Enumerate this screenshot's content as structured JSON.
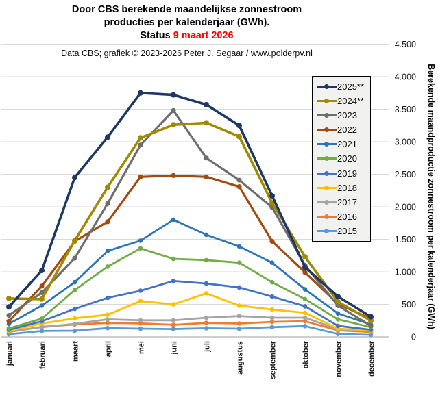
{
  "title": {
    "line1": "Door CBS berekende maandelijkse  zonnestroom",
    "line2": "producties per kalenderjaar (GWh).",
    "status_prefix": "Status ",
    "status_date": "9 maart 2026"
  },
  "subtitle": "Data CBS;  grafiek © 2023-2026  Peter J. Segaar / www.polderpv.nl",
  "axis": {
    "y_title": "Berekende  maandproductie  zonnestroom  per  kalenderjaar  (GWh)",
    "y_ticks": [
      "0",
      "500",
      "1.000",
      "1.500",
      "2.000",
      "2.500",
      "3.000",
      "3.500",
      "4.000",
      "4.500"
    ]
  },
  "chart_data": {
    "type": "line",
    "title": "Door CBS berekende maandelijkse zonnestroom producties per kalenderjaar (GWh). Status 9 maart 2026",
    "xlabel": "",
    "ylabel": "Berekende maandproductie zonnestroom per kalenderjaar (GWh)",
    "ylim": [
      0,
      4500
    ],
    "y_step": 500,
    "grid": true,
    "legend_position": "top-right",
    "x_categories": [
      "januari",
      "februari",
      "maart",
      "april",
      "mei",
      "juni",
      "juli",
      "augustus",
      "september",
      "oktober",
      "november",
      "december"
    ],
    "series": [
      {
        "label": "2025**",
        "color": "#1f3864",
        "line_width": 3.6,
        "marker_r": 4.0,
        "values": [
          460,
          1020,
          2450,
          3070,
          3750,
          3720,
          3570,
          3250,
          2170,
          1070,
          620,
          310
        ]
      },
      {
        "label": "2024**",
        "color": "#a08a00",
        "line_width": 3.6,
        "marker_r": 4.0,
        "values": [
          590,
          580,
          1480,
          2300,
          3060,
          3260,
          3290,
          3080,
          2060,
          1230,
          540,
          250
        ]
      },
      {
        "label": "2023",
        "color": "#6e6e6e",
        "line_width": 3.2,
        "marker_r": 3.6,
        "values": [
          330,
          680,
          1210,
          2050,
          2950,
          3480,
          2750,
          2410,
          1990,
          1100,
          480,
          170
        ]
      },
      {
        "label": "2022",
        "color": "#a24b0e",
        "line_width": 3.2,
        "marker_r": 3.6,
        "values": [
          240,
          780,
          1470,
          1770,
          2460,
          2480,
          2460,
          2310,
          1470,
          990,
          505,
          280
        ]
      },
      {
        "label": "2021",
        "color": "#2e75b6",
        "line_width": 2.8,
        "marker_r": 3.3,
        "values": [
          200,
          480,
          840,
          1320,
          1480,
          1800,
          1570,
          1390,
          1140,
          730,
          360,
          190
        ]
      },
      {
        "label": "2020",
        "color": "#70ad47",
        "line_width": 2.8,
        "marker_r": 3.3,
        "values": [
          130,
          280,
          720,
          1080,
          1360,
          1200,
          1180,
          1140,
          840,
          580,
          270,
          150
        ]
      },
      {
        "label": "2019",
        "color": "#4472c4",
        "line_width": 2.8,
        "marker_r": 3.3,
        "values": [
          110,
          240,
          430,
          600,
          710,
          860,
          820,
          760,
          620,
          470,
          170,
          110
        ]
      },
      {
        "label": "2018",
        "color": "#ffc000",
        "line_width": 2.8,
        "marker_r": 3.3,
        "values": [
          90,
          205,
          285,
          340,
          550,
          500,
          670,
          480,
          420,
          370,
          125,
          100
        ]
      },
      {
        "label": "2017",
        "color": "#a5a5a5",
        "line_width": 2.8,
        "marker_r": 3.3,
        "values": [
          80,
          150,
          200,
          270,
          255,
          255,
          295,
          320,
          295,
          295,
          115,
          90
        ]
      },
      {
        "label": "2016",
        "color": "#ed7d31",
        "line_width": 2.8,
        "marker_r": 3.3,
        "values": [
          75,
          155,
          190,
          215,
          207,
          185,
          215,
          205,
          230,
          240,
          100,
          75
        ]
      },
      {
        "label": "2015",
        "color": "#5b9bd5",
        "line_width": 2.8,
        "marker_r": 3.3,
        "values": [
          40,
          90,
          95,
          135,
          126,
          120,
          133,
          126,
          150,
          165,
          45,
          30
        ]
      }
    ]
  },
  "layout_colors": {
    "gridline": "#d9d9d9",
    "axis_line": "#bfbfbf",
    "tick_text": "#1a1a1a"
  }
}
